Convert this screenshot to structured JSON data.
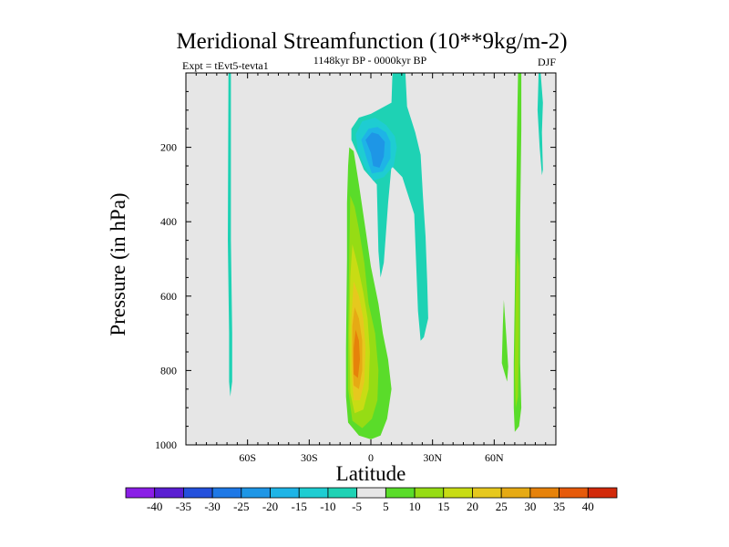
{
  "chart_data": {
    "type": "contour",
    "title": "Meridional Streamfunction (10**9kg/m-2)",
    "subtitle_left": "Expt = tEvt5-tevta1",
    "subtitle_center": "1148kyr BP - 0000kyr BP",
    "subtitle_right": "DJF",
    "xlabel": "Latitude",
    "ylabel": "Pressure (in hPa)",
    "xlim": [
      -90,
      90
    ],
    "ylim": [
      0,
      1000
    ],
    "y_inverted": true,
    "x_ticks": [
      {
        "value": -60,
        "label": "60S"
      },
      {
        "value": -30,
        "label": "30S"
      },
      {
        "value": 0,
        "label": "0"
      },
      {
        "value": 30,
        "label": "30N"
      },
      {
        "value": 60,
        "label": "60N"
      }
    ],
    "y_ticks": [
      {
        "value": 200,
        "label": "200"
      },
      {
        "value": 400,
        "label": "400"
      },
      {
        "value": 600,
        "label": "600"
      },
      {
        "value": 800,
        "label": "800"
      },
      {
        "value": 1000,
        "label": "1000"
      }
    ],
    "contour_levels": [
      -40,
      -35,
      -30,
      -25,
      -20,
      -15,
      -10,
      -5,
      5,
      10,
      15,
      20,
      25,
      30,
      35,
      40
    ],
    "colorbar_labels": [
      "-40",
      "-35",
      "-30",
      "-25",
      "-20",
      "-15",
      "-10",
      "-5",
      "5",
      "10",
      "15",
      "20",
      "25",
      "30",
      "35",
      "40"
    ],
    "colorbar_colors": [
      "#8a1ee6",
      "#5a1ed2",
      "#2450dc",
      "#1e78e6",
      "#1e96e6",
      "#1eb4e6",
      "#1ecdd2",
      "#1ed2b4",
      "#e6e6e6",
      "#5adc2a",
      "#96dc14",
      "#c8dc14",
      "#e6c81e",
      "#e6aa14",
      "#e6820a",
      "#e65a0a",
      "#d22a0a"
    ],
    "background_color": "#e6e6e6",
    "features": [
      {
        "name": "southern-thin-positive-strip",
        "fill": "#1ed2b4",
        "points": [
          [
            -69.3,
            0
          ],
          [
            -68.1,
            0
          ],
          [
            -68.1,
            450
          ],
          [
            -67.5,
            700
          ],
          [
            -67.5,
            830
          ],
          [
            -68.4,
            870
          ],
          [
            -69,
            830
          ],
          [
            -69,
            700
          ],
          [
            -69.6,
            450
          ]
        ]
      },
      {
        "name": "upper-negative-cell-outer",
        "fill": "#1ed2b4",
        "points": [
          [
            10.5,
            0
          ],
          [
            16.8,
            0
          ],
          [
            17.6,
            90
          ],
          [
            21.6,
            160
          ],
          [
            24.2,
            220
          ],
          [
            25.3,
            330
          ],
          [
            26.6,
            440
          ],
          [
            27.4,
            560
          ],
          [
            27.9,
            660
          ],
          [
            25.8,
            710
          ],
          [
            24.2,
            720
          ],
          [
            22.9,
            640
          ],
          [
            22.1,
            520
          ],
          [
            21.1,
            380
          ],
          [
            15.3,
            280
          ],
          [
            10,
            250
          ],
          [
            8.4,
            350
          ],
          [
            6.3,
            510
          ],
          [
            4.7,
            550
          ],
          [
            3.7,
            480
          ],
          [
            2.9,
            300
          ],
          [
            -3.4,
            260
          ],
          [
            -6.3,
            220
          ],
          [
            -9.5,
            180
          ],
          [
            -9.5,
            150
          ],
          [
            -5.8,
            120
          ],
          [
            0,
            110
          ],
          [
            10,
            80
          ]
        ]
      },
      {
        "name": "upper-negative-cell-level2",
        "fill": "#1ecdd2",
        "points": [
          [
            -7.4,
            165
          ],
          [
            -4.2,
            130
          ],
          [
            2.1,
            120
          ],
          [
            7.4,
            140
          ],
          [
            11.6,
            170
          ],
          [
            12.6,
            200
          ],
          [
            11.1,
            250
          ],
          [
            6.3,
            280
          ],
          [
            1.1,
            290
          ],
          [
            -3.2,
            250
          ],
          [
            -6.3,
            210
          ]
        ]
      },
      {
        "name": "upper-negative-cell-level3",
        "fill": "#1eb4e6",
        "points": [
          [
            -4.7,
            180
          ],
          [
            -1.1,
            150
          ],
          [
            3.2,
            145
          ],
          [
            7.4,
            160
          ],
          [
            9.5,
            185
          ],
          [
            9.5,
            230
          ],
          [
            5.8,
            265
          ],
          [
            0.5,
            270
          ],
          [
            -2.1,
            230
          ]
        ]
      },
      {
        "name": "upper-negative-cell-core",
        "fill": "#1e96e6",
        "points": [
          [
            -2.6,
            180
          ],
          [
            0.5,
            160
          ],
          [
            3.7,
            165
          ],
          [
            6.8,
            185
          ],
          [
            6.3,
            225
          ],
          [
            4.2,
            255
          ],
          [
            1.1,
            250
          ],
          [
            0,
            215
          ]
        ]
      },
      {
        "name": "tropical-positive-cell-outer",
        "fill": "#5adc2a",
        "points": [
          [
            -10.5,
            200
          ],
          [
            -8.4,
            210
          ],
          [
            -5.8,
            300
          ],
          [
            -2.6,
            420
          ],
          [
            0,
            520
          ],
          [
            3.7,
            620
          ],
          [
            5.8,
            700
          ],
          [
            8.4,
            770
          ],
          [
            10,
            850
          ],
          [
            7.9,
            930
          ],
          [
            4.7,
            975
          ],
          [
            0,
            985
          ],
          [
            -5.8,
            975
          ],
          [
            -11.1,
            940
          ],
          [
            -12.1,
            870
          ],
          [
            -12.1,
            740
          ],
          [
            -11.6,
            500
          ],
          [
            -11.6,
            350
          ],
          [
            -11.1,
            250
          ]
        ]
      },
      {
        "name": "tropical-positive-cell-level10",
        "fill": "#96dc14",
        "points": [
          [
            -10,
            330
          ],
          [
            -7.9,
            360
          ],
          [
            -5.8,
            420
          ],
          [
            -3.2,
            510
          ],
          [
            -1.1,
            620
          ],
          [
            2.1,
            700
          ],
          [
            3.7,
            800
          ],
          [
            3.2,
            880
          ],
          [
            0.5,
            930
          ],
          [
            -4.2,
            955
          ],
          [
            -9,
            935
          ],
          [
            -11.1,
            850
          ],
          [
            -11.1,
            700
          ],
          [
            -10.5,
            480
          ]
        ]
      },
      {
        "name": "tropical-positive-cell-level15",
        "fill": "#c8dc14",
        "points": [
          [
            -9,
            460
          ],
          [
            -6.3,
            520
          ],
          [
            -3.7,
            590
          ],
          [
            -1.6,
            660
          ],
          [
            -0.5,
            750
          ],
          [
            -1.1,
            850
          ],
          [
            -3.7,
            905
          ],
          [
            -7.9,
            915
          ],
          [
            -10,
            860
          ],
          [
            -10.5,
            700
          ],
          [
            -10,
            550
          ]
        ]
      },
      {
        "name": "tropical-positive-cell-level20",
        "fill": "#e6c81e",
        "points": [
          [
            -8.4,
            560
          ],
          [
            -5.8,
            600
          ],
          [
            -3.7,
            660
          ],
          [
            -2.6,
            740
          ],
          [
            -3.2,
            830
          ],
          [
            -5.3,
            880
          ],
          [
            -8.4,
            880
          ],
          [
            -9.5,
            800
          ],
          [
            -9.5,
            660
          ]
        ]
      },
      {
        "name": "tropical-positive-cell-level25",
        "fill": "#e6aa14",
        "points": [
          [
            -7.9,
            630
          ],
          [
            -5.8,
            660
          ],
          [
            -4.2,
            720
          ],
          [
            -4.2,
            800
          ],
          [
            -5.8,
            850
          ],
          [
            -8.4,
            840
          ],
          [
            -9,
            760
          ],
          [
            -9,
            680
          ]
        ]
      },
      {
        "name": "tropical-positive-cell-core",
        "fill": "#e6820a",
        "points": [
          [
            -7.4,
            690
          ],
          [
            -5.8,
            720
          ],
          [
            -5.3,
            770
          ],
          [
            -6.3,
            820
          ],
          [
            -8.4,
            810
          ],
          [
            -8.4,
            740
          ]
        ]
      },
      {
        "name": "northern-positive-strip-outer",
        "fill": "#5adc2a",
        "points": [
          [
            71.6,
            0
          ],
          [
            73.2,
            0
          ],
          [
            73.2,
            150
          ],
          [
            72.6,
            400
          ],
          [
            72.6,
            620
          ],
          [
            72.6,
            780
          ],
          [
            73.2,
            900
          ],
          [
            72.1,
            950
          ],
          [
            70,
            965
          ],
          [
            69.5,
            900
          ],
          [
            69.5,
            780
          ],
          [
            70,
            600
          ],
          [
            70.5,
            400
          ],
          [
            71.1,
            150
          ]
        ]
      },
      {
        "name": "northern-positive-strip-inner",
        "fill": "#96dc14",
        "points": [
          [
            71.1,
            480
          ],
          [
            72.1,
            520
          ],
          [
            72.1,
            700
          ],
          [
            71.6,
            870
          ],
          [
            70.5,
            900
          ],
          [
            70,
            800
          ],
          [
            70.5,
            600
          ]
        ]
      },
      {
        "name": "northern-small-positive-blob",
        "fill": "#5adc2a",
        "points": [
          [
            64.7,
            610
          ],
          [
            65.8,
            700
          ],
          [
            66.8,
            790
          ],
          [
            66.3,
            830
          ],
          [
            64.7,
            800
          ],
          [
            63.7,
            780
          ],
          [
            64.2,
            680
          ]
        ]
      },
      {
        "name": "northern-polar-positive-strip",
        "fill": "#1ed2b4",
        "points": [
          [
            81.6,
            0
          ],
          [
            82.6,
            0
          ],
          [
            83.7,
            80
          ],
          [
            83.2,
            160
          ],
          [
            83.7,
            260
          ],
          [
            83.2,
            275
          ],
          [
            82.1,
            200
          ],
          [
            81.1,
            100
          ]
        ]
      }
    ]
  }
}
